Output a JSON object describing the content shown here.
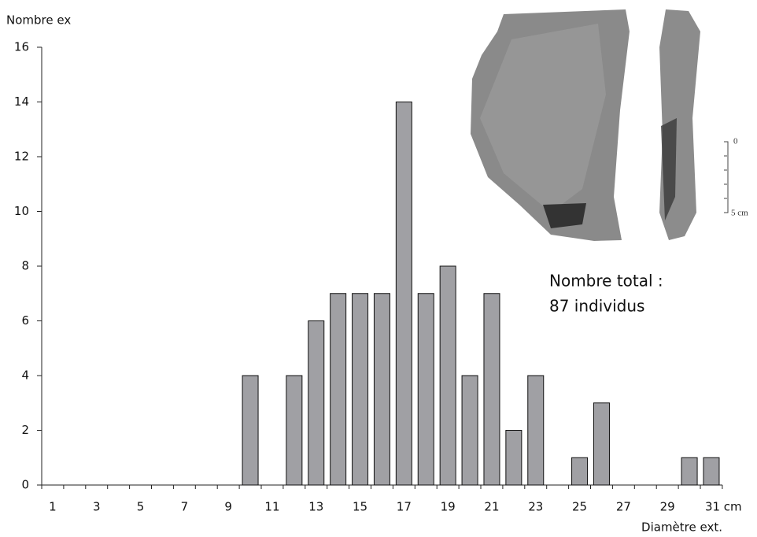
{
  "chart_data": {
    "type": "bar",
    "y_label": "Nombre ex",
    "x_label": "Diamètre ext.",
    "annotation": [
      "Nombre total :",
      "87 individus"
    ],
    "photo_scale_labels": [
      "0",
      "5 cm"
    ],
    "categories": [
      "1",
      null,
      "3",
      null,
      "5",
      null,
      "7",
      null,
      "9",
      null,
      "11",
      null,
      "13",
      null,
      "15",
      null,
      "17",
      null,
      "19",
      null,
      "21",
      null,
      "23",
      null,
      "25",
      null,
      "27",
      null,
      "29",
      null,
      "31 cm"
    ],
    "values": [
      0,
      0,
      0,
      0,
      0,
      0,
      0,
      0,
      0,
      4,
      0,
      4,
      6,
      7,
      7,
      7,
      14,
      7,
      8,
      4,
      7,
      2,
      4,
      0,
      1,
      3,
      0,
      0,
      0,
      1,
      1
    ],
    "color": "#a0a0a4",
    "ylim": [
      0,
      16
    ],
    "yticks": [
      0,
      2,
      4,
      6,
      8,
      10,
      12,
      14,
      16
    ],
    "grid": false
  }
}
